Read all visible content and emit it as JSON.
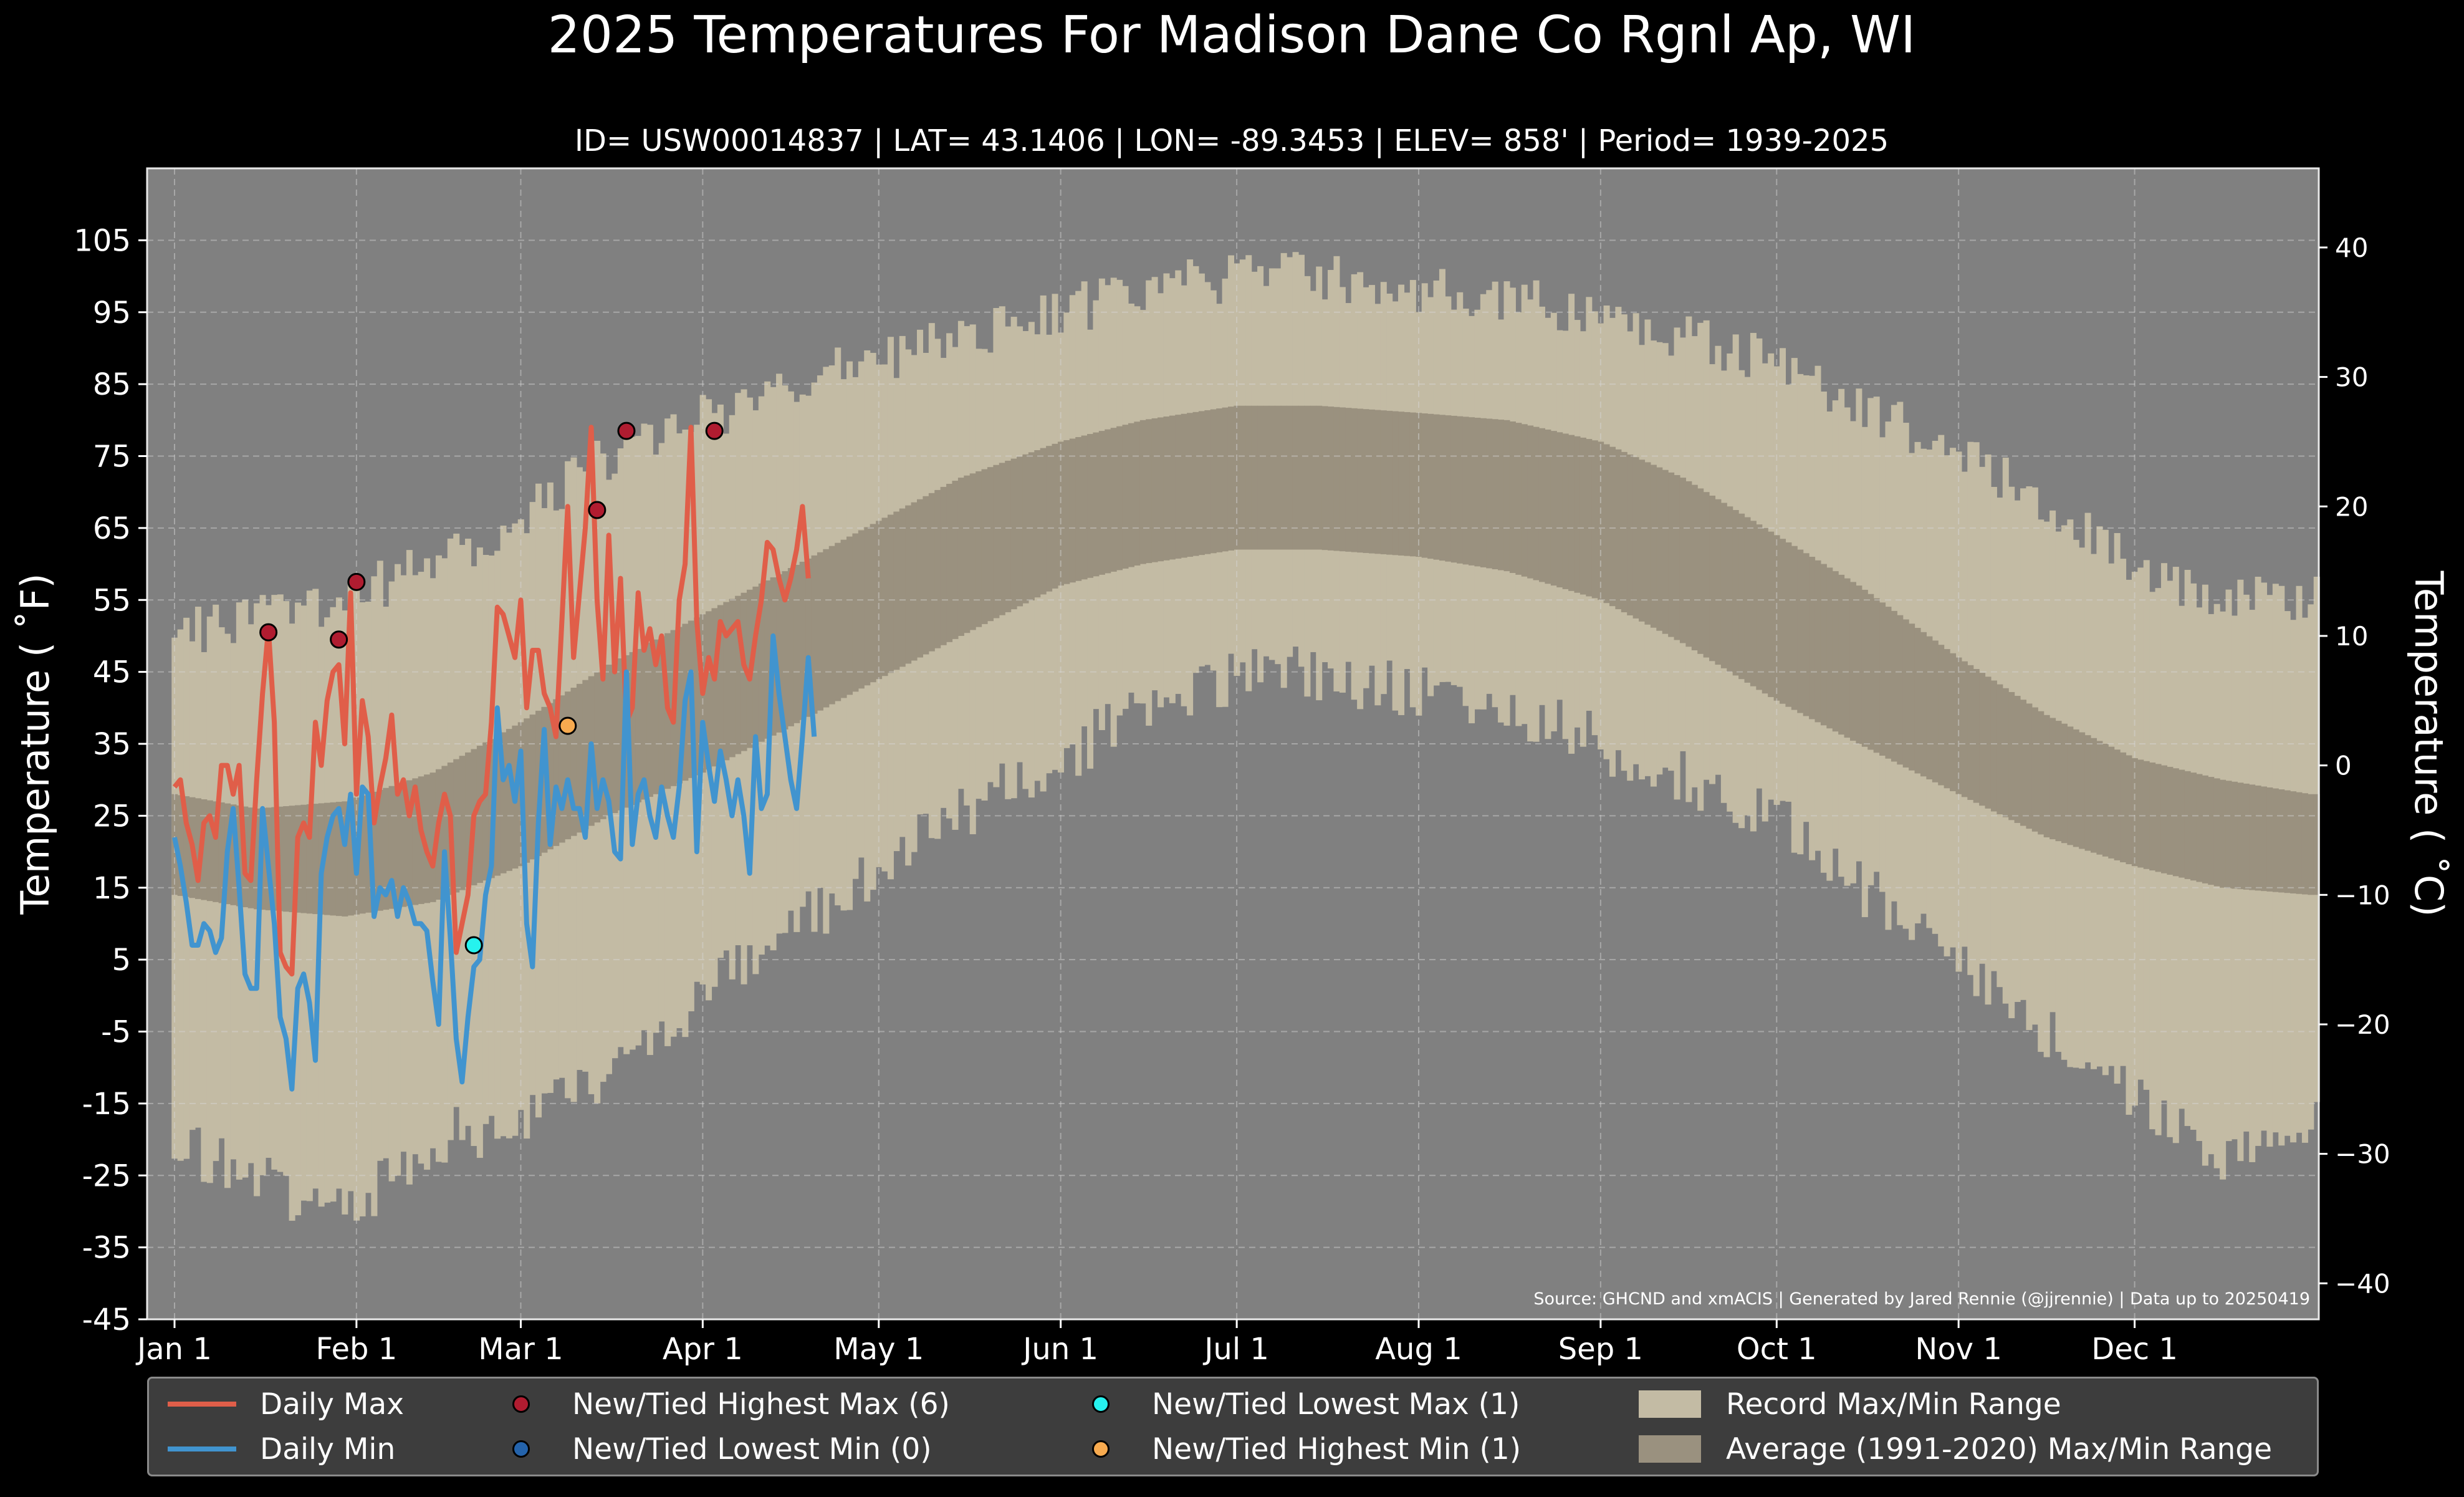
{
  "colors": {
    "background": "#000000",
    "plot_bg": "#808080",
    "record_range": "#c3bba4",
    "normal_range": "#9a917f",
    "daily_max": "#e05e49",
    "daily_min": "#4194cf",
    "record_high_max": "#b01c30",
    "record_low_min": "#2463ab",
    "record_low_max": "#26f2ee",
    "record_high_min": "#f7aa4f"
  },
  "chart_data": {
    "type": "line",
    "title": "2025 Temperatures For Madison Dane Co Rgnl Ap, WI",
    "subtitle": "ID= USW00014837 | LAT= 43.1406 | LON= -89.3453 | ELEV= 858' | Period= 1939-2025",
    "ylabel": "Temperature ( ˚F)",
    "ylabel_right": "Temperature ( ˚C)",
    "ylim": [
      -45,
      115
    ],
    "yticks": [
      "-45",
      "-35",
      "-25",
      "-15",
      "-5",
      "5",
      "15",
      "25",
      "35",
      "45",
      "55",
      "65",
      "75",
      "85",
      "95",
      "105"
    ],
    "yticks_right": [
      "−40",
      "−30",
      "−20",
      "−10",
      "0",
      "10",
      "20",
      "30",
      "40"
    ],
    "xticks": [
      {
        "label": "Jan 1",
        "doy": 1
      },
      {
        "label": "Feb 1",
        "doy": 32
      },
      {
        "label": "Mar 1",
        "doy": 60
      },
      {
        "label": "Apr 1",
        "doy": 91
      },
      {
        "label": "May 1",
        "doy": 121
      },
      {
        "label": "Jun 1",
        "doy": 152
      },
      {
        "label": "Jul 1",
        "doy": 182
      },
      {
        "label": "Aug 1",
        "doy": 213
      },
      {
        "label": "Sep 1",
        "doy": 244
      },
      {
        "label": "Oct 1",
        "doy": 274
      },
      {
        "label": "Nov 1",
        "doy": 305
      },
      {
        "label": "Dec 1",
        "doy": 335
      }
    ],
    "grid": true,
    "legend_position": "bottom",
    "source_note": "Source: GHCND and xmACIS | Generated by Jared Rennie (@jjrennie) | Data up to 20250419",
    "record_range_anchors": {
      "doy": [
        1,
        15,
        30,
        45,
        60,
        75,
        91,
        105,
        121,
        135,
        152,
        166,
        182,
        196,
        213,
        228,
        244,
        258,
        274,
        288,
        305,
        320,
        335,
        350,
        365
      ],
      "record_max": [
        50,
        52,
        55,
        60,
        66,
        75,
        80,
        85,
        88,
        92,
        95,
        98,
        100,
        100,
        98,
        97,
        95,
        92,
        88,
        82,
        76,
        68,
        60,
        55,
        55
      ],
      "record_min": [
        -20,
        -26,
        -30,
        -20,
        -18,
        -10,
        0,
        8,
        18,
        25,
        33,
        40,
        44,
        45,
        42,
        40,
        35,
        30,
        25,
        15,
        5,
        -5,
        -15,
        -22,
        -18
      ]
    },
    "normal_range_anchors": {
      "doy": [
        1,
        15,
        30,
        45,
        60,
        75,
        91,
        105,
        121,
        135,
        152,
        166,
        182,
        196,
        213,
        228,
        244,
        258,
        274,
        288,
        305,
        320,
        335,
        350,
        365
      ],
      "normal_max": [
        28,
        26,
        27,
        31,
        38,
        46,
        53,
        59,
        66,
        72,
        77,
        80,
        82,
        82,
        81,
        80,
        77,
        72,
        64,
        57,
        47,
        39,
        33,
        30,
        28
      ],
      "normal_min": [
        14,
        12,
        11,
        13,
        18,
        25,
        31,
        37,
        44,
        50,
        57,
        60,
        62,
        62,
        61,
        59,
        55,
        49,
        41,
        35,
        28,
        22,
        18,
        15,
        14
      ]
    },
    "series": [
      {
        "name": "Daily Max",
        "start_doy": 1,
        "values": [
          29,
          30,
          24,
          21,
          16,
          24,
          25,
          22,
          32,
          32,
          28,
          32,
          17,
          16,
          30,
          42,
          51,
          38,
          6,
          4,
          3,
          22,
          24,
          22,
          38,
          32,
          41,
          45,
          46,
          35,
          56,
          28,
          41,
          36,
          24,
          29,
          33,
          39,
          28,
          30,
          25,
          29,
          23,
          20,
          18,
          24,
          28,
          25,
          6,
          10,
          14,
          25,
          27,
          28,
          38,
          54,
          53,
          50,
          47,
          55,
          40,
          48,
          48,
          42,
          40,
          36,
          52,
          68,
          47,
          56,
          65,
          79,
          55,
          44,
          64,
          45,
          58,
          38,
          40,
          56,
          48,
          51,
          46,
          50,
          40,
          38,
          55,
          60,
          79,
          52,
          42,
          47,
          44,
          52,
          50,
          51,
          52,
          46,
          44,
          50,
          55,
          63,
          62,
          58,
          55,
          58,
          62,
          68,
          58
        ]
      },
      {
        "name": "Daily Min",
        "start_doy": 1,
        "values": [
          22,
          18,
          13,
          7,
          7,
          10,
          9,
          6,
          8,
          20,
          26,
          15,
          3,
          1,
          1,
          26,
          18,
          10,
          -3,
          -6,
          -13,
          1,
          3,
          -1,
          -9,
          17,
          22,
          25,
          26,
          21,
          28,
          17,
          29,
          28,
          11,
          15,
          14,
          16,
          11,
          15,
          13,
          10,
          10,
          9,
          2,
          -4,
          20,
          8,
          -6,
          -12,
          -3,
          4,
          5,
          14,
          18,
          40,
          30,
          32,
          27,
          34,
          10,
          4,
          24,
          37,
          21,
          29,
          26,
          30,
          26,
          26,
          22,
          35,
          26,
          30,
          27,
          20,
          19,
          45,
          21,
          28,
          30,
          25,
          22,
          29,
          25,
          22,
          29,
          41,
          45,
          20,
          38,
          32,
          27,
          34,
          30,
          25,
          30,
          25,
          17,
          36,
          26,
          28,
          50,
          42,
          36,
          30,
          26,
          36,
          47,
          36
        ]
      }
    ],
    "markers": [
      {
        "series": "New/Tied Highest Max (6)",
        "points": [
          [
            17,
            50.5
          ],
          [
            29,
            49.5
          ],
          [
            32,
            57.5
          ],
          [
            73,
            67.5
          ],
          [
            78,
            78.5
          ],
          [
            93,
            78.5
          ]
        ]
      },
      {
        "series": "New/Tied Lowest Min (0)",
        "points": []
      },
      {
        "series": "New/Tied Lowest Max (1)",
        "points": [
          [
            52,
            7
          ]
        ]
      },
      {
        "series": "New/Tied Highest Min (1)",
        "points": [
          [
            68,
            37.5
          ]
        ]
      }
    ]
  },
  "legend": {
    "daily_max": "Daily Max",
    "daily_min": "Daily Min",
    "high_max": "New/Tied Highest Max (6)",
    "low_min": "New/Tied Lowest Min (0)",
    "low_max": "New/Tied Lowest Max (1)",
    "high_min": "New/Tied Highest Min (1)",
    "record_range": "Record Max/Min Range",
    "normal_range": "Average (1991-2020) Max/Min Range"
  }
}
